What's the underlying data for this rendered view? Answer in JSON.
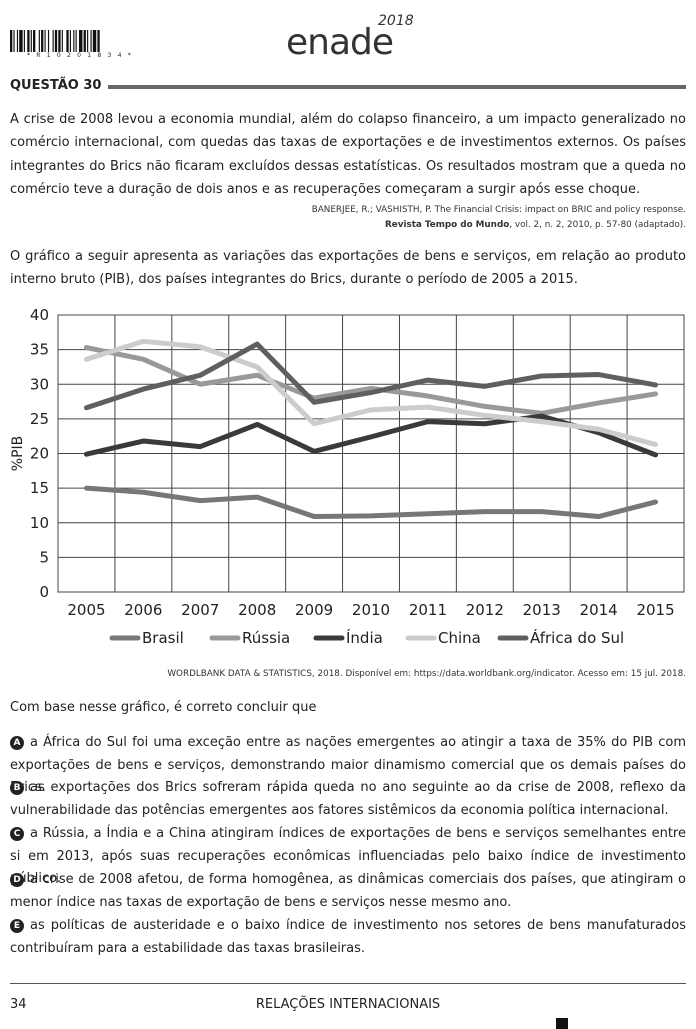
{
  "header": {
    "barcode_text": "* R 1 0 2 0 1 8 3 4 *",
    "logo": "enade",
    "logo_year": "2018"
  },
  "question": {
    "title": "QUESTÃO 30",
    "intro": "A crise de 2008 levou a economia mundial, além do colapso financeiro, a um impacto generalizado no comércio internacional, com quedas das taxas de exportações e de investimentos externos. Os países integrantes do Brics não ficaram excluídos dessas estatísticas. Os resultados mostram que a queda no comércio teve a duração de dois anos e as recuperações começaram a surgir após esse choque.",
    "citation_line1": "BANERJEE, R.; VASHISTH, P. The Financial Crisis: impact on BRIC and policy response.",
    "citation_journal": "Revista Tempo do Mundo",
    "citation_rest": ", vol. 2, n. 2, 2010, p. 57-80 (adaptado).",
    "chart_intro": "O gráfico a seguir apresenta as variações das exportações de bens e serviços, em relação ao produto interno bruto (PIB), dos países integrantes do Brics, durante o período de 2005 a 2015.",
    "source": "WORDLBANK DATA & STATISTICS, 2018. Disponível em: https://data.worldbank.org/indicator. Acesso em: 15 jul. 2018.",
    "prompt": "Com base nesse gráfico, é correto concluir que",
    "options": [
      {
        "letter": "A",
        "text": "a África do Sul foi uma exceção entre as nações emergentes ao atingir a taxa de 35% do PIB com exportações de bens e serviços, demonstrando maior dinamismo comercial que os demais países do Brics."
      },
      {
        "letter": "B",
        "text": "as exportações dos Brics sofreram rápida queda no ano seguinte ao da crise de 2008, reflexo da vulnerabilidade das potências emergentes aos fatores sistêmicos da economia política internacional."
      },
      {
        "letter": "C",
        "text": "a Rússia, a Índia e a China atingiram índices de exportações de bens e serviços semelhantes entre si em 2013, após suas recuperações econômicas influenciadas pelo baixo índice de investimento público."
      },
      {
        "letter": "D",
        "text": "a crise de 2008 afetou, de forma homogênea, as dinâmicas comerciais dos países, que atingiram o menor índice nas taxas de exportação de bens e serviços nesse mesmo ano."
      },
      {
        "letter": "E",
        "text": "as políticas de austeridade e o baixo índice de investimento nos setores de bens manufaturados contribuíram para a estabilidade das taxas brasileiras."
      }
    ]
  },
  "footer": {
    "page_number": "34",
    "title": "RELAÇÕES INTERNACIONAIS"
  },
  "chart_data": {
    "type": "line",
    "title": "",
    "xlabel": "",
    "ylabel": "%PIB",
    "x": [
      "2005",
      "2006",
      "2007",
      "2008",
      "2009",
      "2010",
      "2011",
      "2012",
      "2013",
      "2014",
      "2015"
    ],
    "ylim": [
      0,
      40
    ],
    "yticks": [
      0,
      5,
      10,
      15,
      20,
      25,
      30,
      35,
      40
    ],
    "grid": true,
    "legend_position": "bottom",
    "series": [
      {
        "name": "Brasil",
        "color": "#777777",
        "values": [
          15.0,
          14.4,
          13.2,
          13.7,
          10.9,
          11.0,
          11.3,
          11.6,
          11.6,
          10.9,
          13.0
        ]
      },
      {
        "name": "Rússia",
        "color": "#999999",
        "values": [
          35.3,
          33.6,
          30.0,
          31.3,
          28.0,
          29.4,
          28.3,
          26.8,
          25.8,
          27.3,
          28.6
        ]
      },
      {
        "name": "Índia",
        "color": "#3a3a3a",
        "values": [
          19.9,
          21.8,
          21.0,
          24.2,
          20.3,
          22.4,
          24.6,
          24.3,
          25.4,
          23.0,
          19.8
        ]
      },
      {
        "name": "China",
        "color": "#cccccc",
        "values": [
          33.6,
          36.2,
          35.4,
          32.5,
          24.3,
          26.3,
          26.7,
          25.5,
          24.6,
          23.5,
          21.3
        ]
      },
      {
        "name": "África do Sul",
        "color": "#5f5f5f",
        "values": [
          26.6,
          29.3,
          31.3,
          35.8,
          27.4,
          28.8,
          30.6,
          29.7,
          31.2,
          31.4,
          29.9
        ]
      }
    ]
  }
}
